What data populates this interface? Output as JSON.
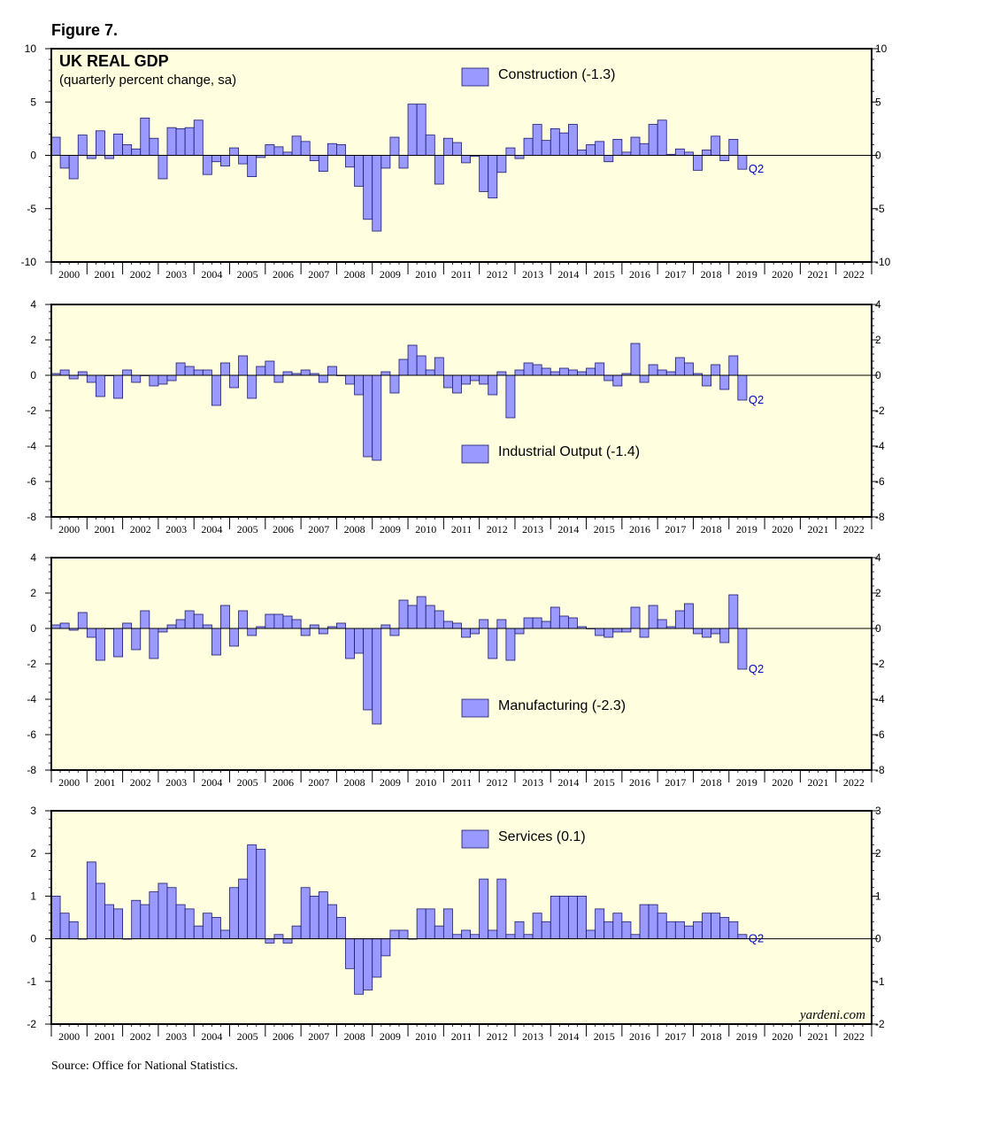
{
  "figure_label": "Figure 7.",
  "source": "Source: Office for National Statistics.",
  "watermark": "yardeni.com",
  "colors": {
    "bar_fill": "#9999ff",
    "bar_stroke": "#1a1a6e",
    "panel_bg": "#ffffe0",
    "q2_label": "#0000cc"
  },
  "years": [
    "2000",
    "2001",
    "2002",
    "2003",
    "2004",
    "2005",
    "2006",
    "2007",
    "2008",
    "2009",
    "2010",
    "2011",
    "2012",
    "2013",
    "2014",
    "2015",
    "2016",
    "2017",
    "2018",
    "2019",
    "2020",
    "2021",
    "2022"
  ],
  "chart_data": [
    {
      "type": "bar",
      "title": "UK REAL GDP",
      "subtitle": "(quarterly percent change, sa)",
      "legend": "Construction (-1.3)",
      "latest_label": "Q2",
      "ylim": [
        -10,
        10
      ],
      "yticks": [
        -10,
        -5,
        0,
        5,
        10
      ],
      "x_start": "2000 Q1",
      "values": [
        1.7,
        -1.2,
        -2.2,
        1.9,
        -0.3,
        2.3,
        -0.3,
        2.0,
        1.0,
        0.6,
        3.5,
        1.6,
        -2.2,
        2.6,
        2.5,
        2.6,
        3.3,
        -1.8,
        -0.6,
        -1.0,
        0.7,
        -0.8,
        -2.0,
        -0.2,
        1.0,
        0.8,
        0.3,
        1.8,
        1.3,
        -0.5,
        -1.5,
        1.1,
        1.0,
        -1.1,
        -2.9,
        -6.0,
        -7.1,
        -1.2,
        1.7,
        -1.2,
        4.8,
        4.8,
        1.9,
        -2.7,
        1.6,
        1.2,
        -0.7,
        -0.1,
        -3.4,
        -4.0,
        -1.6,
        0.7,
        -0.3,
        1.6,
        2.9,
        1.4,
        2.5,
        2.1,
        2.9,
        0.5,
        1.0,
        1.3,
        -0.6,
        1.5,
        0.3,
        1.7,
        1.1,
        2.9,
        3.3,
        0.1,
        0.6,
        0.3,
        -1.4,
        0.5,
        1.8,
        -0.5,
        1.5,
        -1.3
      ]
    },
    {
      "type": "bar",
      "legend": "Industrial Output (-1.4)",
      "latest_label": "Q2",
      "ylim": [
        -8,
        4
      ],
      "yticks": [
        -8,
        -6,
        -4,
        -2,
        0,
        2,
        4
      ],
      "x_start": "2000 Q1",
      "values": [
        0.1,
        0.3,
        -0.2,
        0.2,
        -0.4,
        -1.2,
        0.0,
        -1.3,
        0.3,
        -0.4,
        0.0,
        -0.6,
        -0.5,
        -0.3,
        0.7,
        0.5,
        0.3,
        0.3,
        -1.7,
        0.7,
        -0.7,
        1.1,
        -1.3,
        0.5,
        0.8,
        -0.4,
        0.2,
        0.1,
        0.3,
        0.1,
        -0.4,
        0.5,
        0.0,
        -0.5,
        -1.1,
        -4.6,
        -4.8,
        0.2,
        -1.0,
        0.9,
        1.7,
        1.1,
        0.3,
        1.0,
        -0.7,
        -1.0,
        -0.5,
        -0.3,
        -0.5,
        -1.1,
        0.2,
        -2.4,
        0.3,
        0.7,
        0.6,
        0.4,
        0.2,
        0.4,
        0.3,
        0.2,
        0.4,
        0.7,
        -0.3,
        -0.6,
        0.1,
        1.8,
        -0.4,
        0.6,
        0.3,
        0.2,
        1.0,
        0.7,
        0.1,
        -0.6,
        0.6,
        -0.8,
        1.1,
        -1.4
      ]
    },
    {
      "type": "bar",
      "legend": "Manufacturing (-2.3)",
      "latest_label": "Q2",
      "ylim": [
        -8,
        4
      ],
      "yticks": [
        -8,
        -6,
        -4,
        -2,
        0,
        2,
        4
      ],
      "x_start": "2000 Q1",
      "values": [
        0.2,
        0.3,
        -0.1,
        0.9,
        -0.5,
        -1.8,
        0.0,
        -1.6,
        0.3,
        -1.2,
        1.0,
        -1.7,
        -0.2,
        0.2,
        0.5,
        1.0,
        0.8,
        0.2,
        -1.5,
        1.3,
        -1.0,
        1.0,
        -0.4,
        0.1,
        0.8,
        0.8,
        0.7,
        0.5,
        -0.4,
        0.2,
        -0.3,
        0.1,
        0.3,
        -1.7,
        -1.4,
        -4.6,
        -5.4,
        0.2,
        -0.4,
        1.6,
        1.3,
        1.8,
        1.3,
        1.0,
        0.4,
        0.3,
        -0.5,
        -0.3,
        0.5,
        -1.7,
        0.5,
        -1.8,
        -0.3,
        0.6,
        0.6,
        0.4,
        1.2,
        0.7,
        0.6,
        0.1,
        0.0,
        -0.4,
        -0.5,
        -0.2,
        -0.2,
        1.2,
        -0.5,
        1.3,
        0.5,
        0.1,
        1.0,
        1.4,
        -0.3,
        -0.5,
        -0.3,
        -0.8,
        1.9,
        -2.3
      ]
    },
    {
      "type": "bar",
      "legend": "Services (0.1)",
      "latest_label": "Q2",
      "ylim": [
        -2,
        3
      ],
      "yticks": [
        -2,
        -1,
        0,
        1,
        2,
        3
      ],
      "x_start": "2000 Q1",
      "values": [
        1.0,
        0.6,
        0.4,
        0.0,
        1.8,
        1.3,
        0.8,
        0.7,
        0.0,
        0.9,
        0.8,
        1.1,
        1.3,
        1.2,
        0.8,
        0.7,
        0.3,
        0.6,
        0.5,
        0.2,
        1.2,
        1.4,
        2.2,
        2.1,
        -0.1,
        0.1,
        -0.1,
        0.3,
        1.2,
        1.0,
        1.1,
        0.8,
        0.5,
        -0.7,
        -1.3,
        -1.2,
        -0.9,
        -0.4,
        0.2,
        0.2,
        0.0,
        0.7,
        0.7,
        0.3,
        0.7,
        0.1,
        0.2,
        0.1,
        1.4,
        0.2,
        1.4,
        0.1,
        0.4,
        0.1,
        0.6,
        0.4,
        1.0,
        1.0,
        1.0,
        1.0,
        0.2,
        0.7,
        0.4,
        0.6,
        0.4,
        0.1,
        0.8,
        0.8,
        0.6,
        0.4,
        0.4,
        0.3,
        0.4,
        0.6,
        0.6,
        0.5,
        0.4,
        0.1
      ]
    }
  ]
}
